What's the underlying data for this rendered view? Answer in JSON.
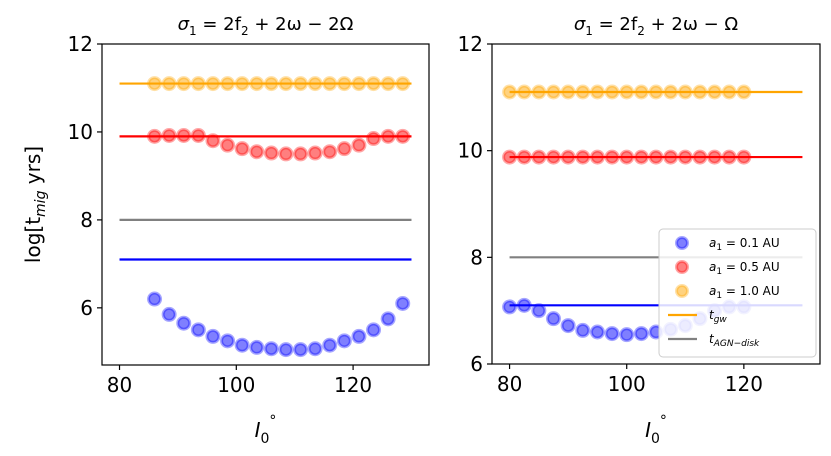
{
  "chart_data": [
    {
      "type": "scatter",
      "title": "σ1 = 2f2 + 2ω − 2Ω",
      "title_parts": {
        "sigma": "σ",
        "sub1": "1",
        "rhs": " = 2f",
        "sub2": "2",
        "tail": " + 2ω − 2Ω"
      },
      "xlabel": "I0°",
      "xlabel_parts": {
        "main": "I",
        "sub": "0",
        "sup": "°"
      },
      "ylabel": "log[t_mig yrs]",
      "ylabel_parts": {
        "pre": "log[t",
        "sub": "mig",
        "post": " yrs]"
      },
      "xlim": [
        77,
        133
      ],
      "ylim": [
        4.7,
        12
      ],
      "xticks": [
        "80",
        "100",
        "120"
      ],
      "yticks": [
        "6",
        "8",
        "10",
        "12"
      ],
      "series": [
        {
          "name": "a1 = 0.1 AU",
          "color": "#0000ff",
          "x": [
            86,
            88.5,
            91,
            93.5,
            96,
            98.5,
            101,
            103.5,
            106,
            108.5,
            111,
            113.5,
            116,
            118.5,
            121,
            123.5,
            126,
            128.5
          ],
          "y": [
            6.2,
            5.85,
            5.65,
            5.5,
            5.35,
            5.25,
            5.15,
            5.1,
            5.07,
            5.05,
            5.05,
            5.07,
            5.15,
            5.25,
            5.35,
            5.5,
            5.75,
            6.1
          ]
        },
        {
          "name": "a1 = 0.5 AU",
          "color": "#ff0000",
          "x": [
            86,
            88.5,
            91,
            93.5,
            96,
            98.5,
            101,
            103.5,
            106,
            108.5,
            111,
            113.5,
            116,
            118.5,
            121,
            123.5,
            126,
            128.5
          ],
          "y": [
            9.9,
            9.92,
            9.92,
            9.92,
            9.8,
            9.7,
            9.62,
            9.55,
            9.52,
            9.5,
            9.5,
            9.52,
            9.55,
            9.62,
            9.7,
            9.85,
            9.9,
            9.9
          ]
        },
        {
          "name": "a1 = 1.0 AU",
          "color": "#ffa500",
          "x": [
            86,
            88.5,
            91,
            93.5,
            96,
            98.5,
            101,
            103.5,
            106,
            108.5,
            111,
            113.5,
            116,
            118.5,
            121,
            123.5,
            126,
            128.5
          ],
          "y": [
            11.1,
            11.1,
            11.1,
            11.1,
            11.1,
            11.1,
            11.1,
            11.1,
            11.1,
            11.1,
            11.1,
            11.1,
            11.1,
            11.1,
            11.1,
            11.1,
            11.1,
            11.1
          ]
        }
      ],
      "hlines": [
        {
          "y": 11.1,
          "x_range": [
            80,
            130
          ],
          "color": "#ffa500",
          "label": "t_gw"
        },
        {
          "y": 9.9,
          "x_range": [
            80,
            130
          ],
          "color": "#ff0000",
          "label": ""
        },
        {
          "y": 8.0,
          "x_range": [
            80,
            130
          ],
          "color": "#808080",
          "label": "t_AGN-disk"
        },
        {
          "y": 7.1,
          "x_range": [
            80,
            130
          ],
          "color": "#0000ff",
          "label": ""
        }
      ]
    },
    {
      "type": "scatter",
      "title": "σ1 = 2f2 + 2ω − Ω",
      "title_parts": {
        "sigma": "σ",
        "sub1": "1",
        "rhs": " = 2f",
        "sub2": "2",
        "tail": " + 2ω − Ω"
      },
      "xlabel": "I0°",
      "xlabel_parts": {
        "main": "I",
        "sub": "0",
        "sup": "°"
      },
      "xlim": [
        77,
        133
      ],
      "ylim": [
        6,
        12
      ],
      "xticks": [
        "80",
        "100",
        "120"
      ],
      "yticks": [
        "6",
        "8",
        "10",
        "12"
      ],
      "series": [
        {
          "name": "a1 = 0.1 AU",
          "color": "#0000ff",
          "x": [
            80,
            82.5,
            85,
            87.5,
            90,
            92.5,
            95,
            97.5,
            100,
            102.5,
            105,
            107.5,
            110,
            112.5,
            115,
            117.5,
            120
          ],
          "y": [
            7.07,
            7.1,
            7.0,
            6.85,
            6.72,
            6.63,
            6.6,
            6.57,
            6.55,
            6.57,
            6.6,
            6.65,
            6.72,
            6.85,
            7.0,
            7.07,
            7.07
          ]
        },
        {
          "name": "a1 = 0.5 AU",
          "color": "#ff0000",
          "x": [
            80,
            82.5,
            85,
            87.5,
            90,
            92.5,
            95,
            97.5,
            100,
            102.5,
            105,
            107.5,
            110,
            112.5,
            115,
            117.5,
            120
          ],
          "y": [
            9.88,
            9.88,
            9.88,
            9.88,
            9.88,
            9.88,
            9.88,
            9.88,
            9.88,
            9.88,
            9.88,
            9.88,
            9.88,
            9.88,
            9.88,
            9.88,
            9.88
          ]
        },
        {
          "name": "a1 = 1.0 AU",
          "color": "#ffa500",
          "x": [
            80,
            82.5,
            85,
            87.5,
            90,
            92.5,
            95,
            97.5,
            100,
            102.5,
            105,
            107.5,
            110,
            112.5,
            115,
            117.5,
            120
          ],
          "y": [
            11.1,
            11.1,
            11.1,
            11.1,
            11.1,
            11.1,
            11.1,
            11.1,
            11.1,
            11.1,
            11.1,
            11.1,
            11.1,
            11.1,
            11.1,
            11.1,
            11.1
          ]
        }
      ],
      "hlines": [
        {
          "y": 11.1,
          "x_range": [
            80,
            130
          ],
          "color": "#ffa500",
          "label": "t_gw"
        },
        {
          "y": 9.88,
          "x_range": [
            80,
            130
          ],
          "color": "#ff0000",
          "label": ""
        },
        {
          "y": 8.0,
          "x_range": [
            80,
            130
          ],
          "color": "#808080",
          "label": "t_AGN-disk"
        },
        {
          "y": 7.1,
          "x_range": [
            80,
            130
          ],
          "color": "#0000ff",
          "label": ""
        }
      ],
      "legend": {
        "placement": "lower-right",
        "entries": [
          {
            "kind": "marker",
            "color": "#0000ff",
            "text": "a1 = 0.1 AU",
            "pre": "a",
            "sub": "1",
            "post": " = 0.1 AU"
          },
          {
            "kind": "marker",
            "color": "#ff0000",
            "text": "a1 = 0.5 AU",
            "pre": "a",
            "sub": "1",
            "post": " = 0.5 AU"
          },
          {
            "kind": "marker",
            "color": "#ffa500",
            "text": "a1 = 1.0 AU",
            "pre": "a",
            "sub": "1",
            "post": " = 1.0 AU"
          },
          {
            "kind": "line",
            "color": "#ffa500",
            "text": "t_gw",
            "pre": "t",
            "sub": "gw",
            "post": ""
          },
          {
            "kind": "line",
            "color": "#808080",
            "text": "t_AGN-disk",
            "pre": "t",
            "sub": "AGN−disk",
            "post": ""
          }
        ]
      }
    }
  ]
}
